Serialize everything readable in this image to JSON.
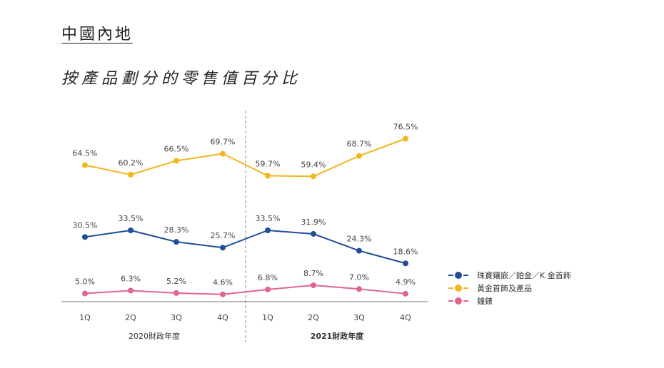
{
  "header": {
    "region": "中國內地",
    "chart_title": "按產品劃分的零售值百分比"
  },
  "colors": {
    "jewellery": "#1f4e96",
    "gold": "#f0b61c",
    "watches": "#e0658c",
    "axis": "#777777",
    "divider": "#888888",
    "label": "#444444"
  },
  "chart_data": {
    "type": "line",
    "title": "按產品劃分的零售值百分比",
    "categories": [
      "1Q",
      "2Q",
      "3Q",
      "4Q",
      "1Q",
      "2Q",
      "3Q",
      "4Q"
    ],
    "groups": [
      {
        "label": "2020財政年度",
        "bold": false
      },
      {
        "label": "2021財政年度",
        "bold": true
      }
    ],
    "series": [
      {
        "name": "黃金首飾及產品",
        "key": "gold",
        "values": [
          64.5,
          60.2,
          66.5,
          69.7,
          59.7,
          59.4,
          68.7,
          76.5
        ],
        "labels": [
          "64.5%",
          "60.2%",
          "66.5%",
          "69.7%",
          "59.7%",
          "59.4%",
          "68.7%",
          "76.5%"
        ]
      },
      {
        "name": "珠寶鑲嵌／鉑金／K 金首飾",
        "key": "jewellery",
        "values": [
          30.5,
          33.5,
          28.3,
          25.7,
          33.5,
          31.9,
          24.3,
          18.6
        ],
        "labels": [
          "30.5%",
          "33.5%",
          "28.3%",
          "25.7%",
          "33.5%",
          "31.9%",
          "24.3%",
          "18.6%"
        ]
      },
      {
        "name": "鐘錶",
        "key": "watches",
        "values": [
          5.0,
          6.3,
          5.2,
          4.6,
          6.8,
          8.7,
          7.0,
          4.9
        ],
        "labels": [
          "5.0%",
          "6.3%",
          "5.2%",
          "4.6%",
          "6.8%",
          "8.7%",
          "7.0%",
          "4.9%"
        ]
      }
    ],
    "legend": [
      {
        "name": "珠寶鑲嵌／鉑金／K 金首飾",
        "key": "jewellery"
      },
      {
        "name": "黃金首飾及產品",
        "key": "gold"
      },
      {
        "name": "鐘錶",
        "key": "watches"
      }
    ],
    "legend_position": "right",
    "grid": false
  }
}
